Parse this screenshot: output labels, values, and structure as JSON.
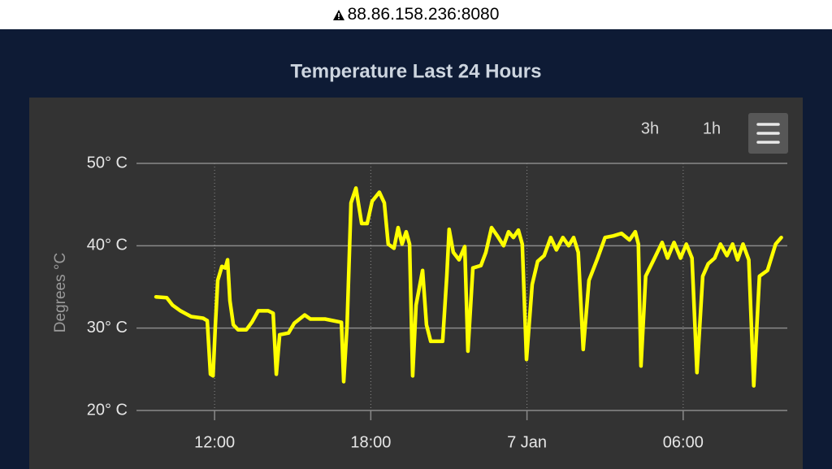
{
  "browser": {
    "url": "88.86.158.236:8080"
  },
  "chart_data": {
    "type": "line",
    "title": "Temperature Last 24 Hours",
    "y_axis_title": "Degrees °C",
    "range_buttons": [
      "3h",
      "1h"
    ],
    "color": "#ffff00",
    "grid": true,
    "xlim": [
      9,
      34
    ],
    "xticks": [
      {
        "value": 12,
        "label": "12:00"
      },
      {
        "value": 18,
        "label": "18:00"
      },
      {
        "value": 24,
        "label": "7 Jan"
      },
      {
        "value": 30,
        "label": "06:00"
      }
    ],
    "ylim": [
      20,
      50
    ],
    "yticks": [
      {
        "value": 20,
        "label": "20° C"
      },
      {
        "value": 30,
        "label": "30° C"
      },
      {
        "value": 40,
        "label": "40° C"
      },
      {
        "value": 50,
        "label": "50° C"
      }
    ],
    "x": [
      9.75,
      10.16,
      10.38,
      10.69,
      11.1,
      11.56,
      11.72,
      11.84,
      11.94,
      12.03,
      12.12,
      12.28,
      12.41,
      12.5,
      12.59,
      12.72,
      12.9,
      13.22,
      13.43,
      13.68,
      14.06,
      14.25,
      14.37,
      14.5,
      14.84,
      15.06,
      15.46,
      15.68,
      16.24,
      16.55,
      16.87,
      16.96,
      17.09,
      17.24,
      17.43,
      17.65,
      17.86,
      18.05,
      18.33,
      18.52,
      18.67,
      18.89,
      19.05,
      19.2,
      19.36,
      19.49,
      19.61,
      19.74,
      19.99,
      20.14,
      20.3,
      20.76,
      20.92,
      21.01,
      21.17,
      21.39,
      21.61,
      21.73,
      21.92,
      22.23,
      22.42,
      22.64,
      22.86,
      23.1,
      23.29,
      23.48,
      23.67,
      23.82,
      23.98,
      24.2,
      24.41,
      24.66,
      24.91,
      25.13,
      25.38,
      25.6,
      25.79,
      25.97,
      26.16,
      26.38,
      26.69,
      27.0,
      27.32,
      27.63,
      27.94,
      28.16,
      28.28,
      28.38,
      28.56,
      28.87,
      29.19,
      29.4,
      29.65,
      29.9,
      30.12,
      30.34,
      30.53,
      30.75,
      30.96,
      31.21,
      31.43,
      31.68,
      31.9,
      32.09,
      32.3,
      32.52,
      32.71,
      32.93,
      33.24,
      33.55,
      33.77
    ],
    "values": [
      33.8,
      33.7,
      32.8,
      32.1,
      31.4,
      31.2,
      30.9,
      24.4,
      24.2,
      30.4,
      35.8,
      37.5,
      37.3,
      38.3,
      33.3,
      30.4,
      29.8,
      29.8,
      30.7,
      32.1,
      32.1,
      31.8,
      24.4,
      29.2,
      29.4,
      30.6,
      31.6,
      31.1,
      31.1,
      30.9,
      30.7,
      23.5,
      30.4,
      45.2,
      47.0,
      42.7,
      42.7,
      45.4,
      46.5,
      45.2,
      40.2,
      39.7,
      42.2,
      40.2,
      41.7,
      40.2,
      24.2,
      32.8,
      37.0,
      30.4,
      28.4,
      28.4,
      36.3,
      42.0,
      39.2,
      38.3,
      39.9,
      27.2,
      37.3,
      37.6,
      39.2,
      42.2,
      41.2,
      40.0,
      41.7,
      41.0,
      41.9,
      40.2,
      26.2,
      35.3,
      38.1,
      38.8,
      41.0,
      39.5,
      41.0,
      40.0,
      41.0,
      39.2,
      27.4,
      35.8,
      38.3,
      41.0,
      41.2,
      41.5,
      40.7,
      41.7,
      40.2,
      25.4,
      36.3,
      38.3,
      40.4,
      38.5,
      40.4,
      38.5,
      40.2,
      38.5,
      24.6,
      36.3,
      37.8,
      38.5,
      40.2,
      38.8,
      40.2,
      38.3,
      40.2,
      38.3,
      23.0,
      36.3,
      37.0,
      40.2,
      41.0
    ]
  }
}
